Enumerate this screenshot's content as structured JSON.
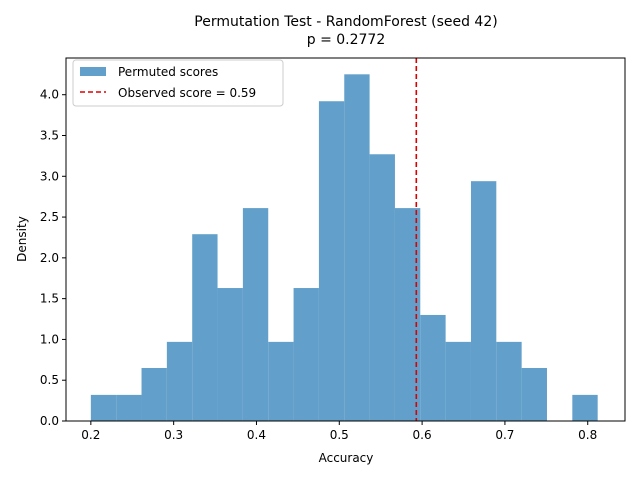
{
  "chart_data": {
    "type": "bar",
    "title": "Permutation Test - RandomForest (seed 42)",
    "subtitle": "p = 0.2772",
    "xlabel": "Accuracy",
    "ylabel": "Density",
    "xlim": [
      0.17,
      0.845
    ],
    "ylim": [
      0,
      4.45
    ],
    "xticks": [
      "0.2",
      "0.3",
      "0.4",
      "0.5",
      "0.6",
      "0.7",
      "0.8"
    ],
    "yticks": [
      "0.0",
      "0.5",
      "1.0",
      "1.5",
      "2.0",
      "2.5",
      "3.0",
      "3.5",
      "4.0"
    ],
    "grid": false,
    "legend_position": "top-left",
    "series": [
      {
        "name": "Permuted scores",
        "color": "#629fca",
        "bin_edges": [
          0.2,
          0.2306,
          0.2612,
          0.2918,
          0.3224,
          0.353,
          0.3836,
          0.4142,
          0.4448,
          0.4754,
          0.506,
          0.5366,
          0.5672,
          0.5978,
          0.6284,
          0.659,
          0.6896,
          0.7202,
          0.7508,
          0.7814,
          0.812
        ],
        "values": [
          0.32,
          0.32,
          0.65,
          0.97,
          2.29,
          1.63,
          2.61,
          0.97,
          1.63,
          3.92,
          4.25,
          3.27,
          2.61,
          1.3,
          0.97,
          2.94,
          0.97,
          0.65,
          0.0,
          0.32
        ]
      }
    ],
    "reference_line": {
      "label": "Observed score = 0.59",
      "x": 0.593,
      "color": "#dd0000",
      "style": "dashed"
    }
  }
}
